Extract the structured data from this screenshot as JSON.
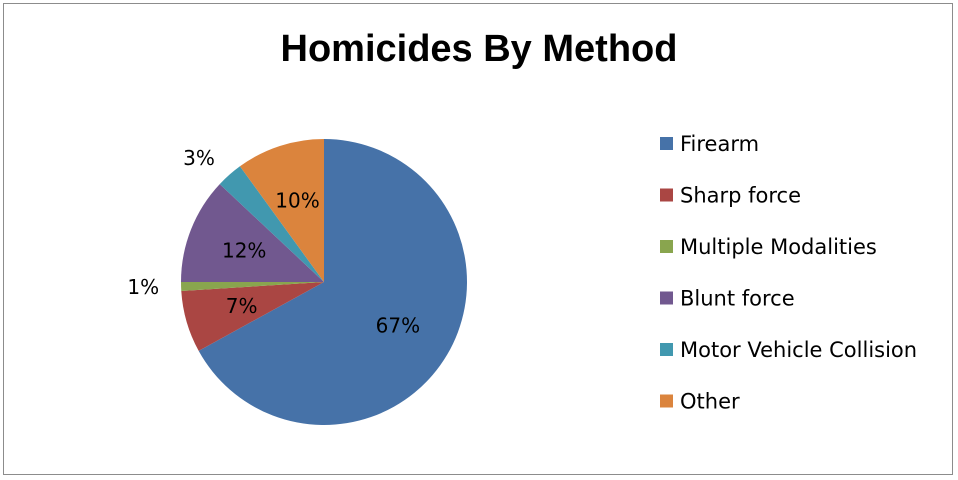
{
  "chart_data": {
    "type": "pie",
    "title": "Homicides By Method",
    "categories": [
      "Firearm",
      "Sharp force",
      "Multiple Modalities",
      "Blunt force",
      "Motor Vehicle Collision",
      "Other"
    ],
    "values": [
      67,
      7,
      1,
      12,
      3,
      10
    ],
    "labels": [
      "67%",
      "7%",
      "1%",
      "12%",
      "3%",
      "10%"
    ],
    "colors": [
      "#4672A8",
      "#AA4643",
      "#89A54E",
      "#71588F",
      "#4198AF",
      "#DB843D"
    ],
    "start_angle_deg": 0,
    "direction": "clockwise",
    "legend": "right"
  }
}
